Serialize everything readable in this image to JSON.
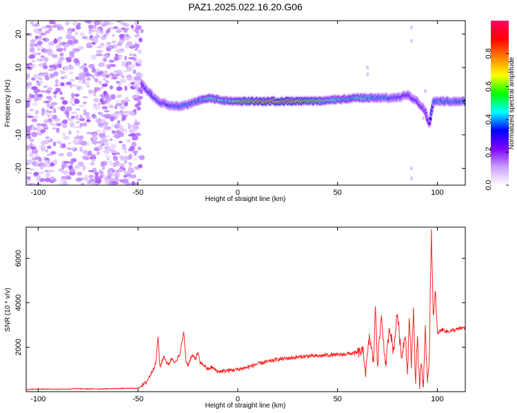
{
  "title": "PAZ1.2025.022.16.20.G06",
  "chart_data": [
    {
      "type": "heatmap",
      "xlabel": "Height of straight line (km)",
      "ylabel": "Frequency (Hz)",
      "xlim": [
        -106,
        114
      ],
      "ylim": [
        -25,
        24
      ],
      "xticks": [
        -100,
        -50,
        0,
        50,
        100
      ],
      "yticks": [
        -20,
        -10,
        0,
        10,
        20
      ],
      "colorbar": {
        "label": "Normalized spectral amplitude",
        "range": [
          0,
          1
        ],
        "ticks": [
          0.0,
          0.2,
          0.4,
          0.6,
          0.8
        ],
        "colormap": [
          "#ffffff",
          "#c9a0ff",
          "#7f00ff",
          "#0000ff",
          "#00ffff",
          "#00ff00",
          "#ffff00",
          "#ff8000",
          "#ff0000",
          "#ff0066"
        ]
      },
      "noise_region_km": [
        -106,
        -48
      ],
      "ridge": {
        "description_x_km": [
          -48,
          -45,
          -40,
          -35,
          -30,
          -25,
          -20,
          -15,
          -10,
          -5,
          0,
          10,
          20,
          30,
          40,
          50,
          60,
          70,
          80,
          85,
          90,
          94,
          96,
          98,
          100,
          114
        ],
        "freq_hz": [
          5,
          3,
          0,
          -1,
          -1.5,
          -1,
          0,
          1,
          0.5,
          0,
          0,
          0,
          0,
          0,
          0,
          0.5,
          1,
          1,
          1,
          2,
          0,
          -3,
          -7,
          0,
          0,
          0
        ],
        "amplitude": [
          0.3,
          0.35,
          0.4,
          0.4,
          0.45,
          0.45,
          0.5,
          0.7,
          0.6,
          0.6,
          0.7,
          0.9,
          0.95,
          0.95,
          0.7,
          0.6,
          0.6,
          0.5,
          0.4,
          0.3,
          0.25,
          0.2,
          0.25,
          0.45,
          0.5,
          0.5
        ]
      }
    },
    {
      "type": "line",
      "xlabel": "Height of straight line (km)",
      "ylabel": "SNR (10 * v/v)",
      "xlim": [
        -106,
        114
      ],
      "ylim": [
        0,
        7400
      ],
      "xticks": [
        -100,
        -50,
        0,
        50,
        100
      ],
      "yticks": [
        2000,
        4000,
        6000
      ],
      "color": "#ff2020",
      "series": [
        {
          "x": [
            -106,
            -100,
            -90,
            -80,
            -70,
            -60,
            -50,
            -46,
            -43,
            -41,
            -40,
            -39,
            -37,
            -35,
            -33,
            -31,
            -29,
            -27,
            -26,
            -25,
            -23,
            -21,
            -20,
            -19,
            -17,
            -15,
            -13,
            -10,
            -5,
            0,
            5,
            10,
            15,
            20,
            25,
            30,
            35,
            40,
            45,
            50,
            55,
            60,
            63,
            64,
            66,
            68,
            69,
            70,
            72,
            74,
            76,
            78,
            80,
            82,
            84,
            85,
            86,
            87,
            88,
            89,
            90,
            91,
            92,
            93,
            94,
            95,
            96,
            97,
            98,
            99,
            100,
            102,
            105,
            110,
            114
          ],
          "y": [
            100,
            120,
            110,
            130,
            120,
            140,
            150,
            400,
            900,
            1300,
            2500,
            1100,
            1600,
            1200,
            1500,
            1300,
            1700,
            2700,
            1400,
            1200,
            1600,
            1500,
            1800,
            1300,
            1200,
            1000,
            1100,
            900,
            950,
            1000,
            1100,
            1250,
            1350,
            1450,
            1500,
            1550,
            1600,
            1600,
            1650,
            1650,
            1700,
            1750,
            1800,
            800,
            2500,
            1300,
            3900,
            1200,
            3500,
            1000,
            3000,
            1800,
            3600,
            1500,
            2700,
            700,
            3400,
            1200,
            3800,
            300,
            2600,
            200,
            1400,
            100,
            2800,
            500,
            1600,
            7400,
            3200,
            4500,
            2600,
            2800,
            2700,
            2800,
            2900
          ]
        }
      ]
    }
  ]
}
